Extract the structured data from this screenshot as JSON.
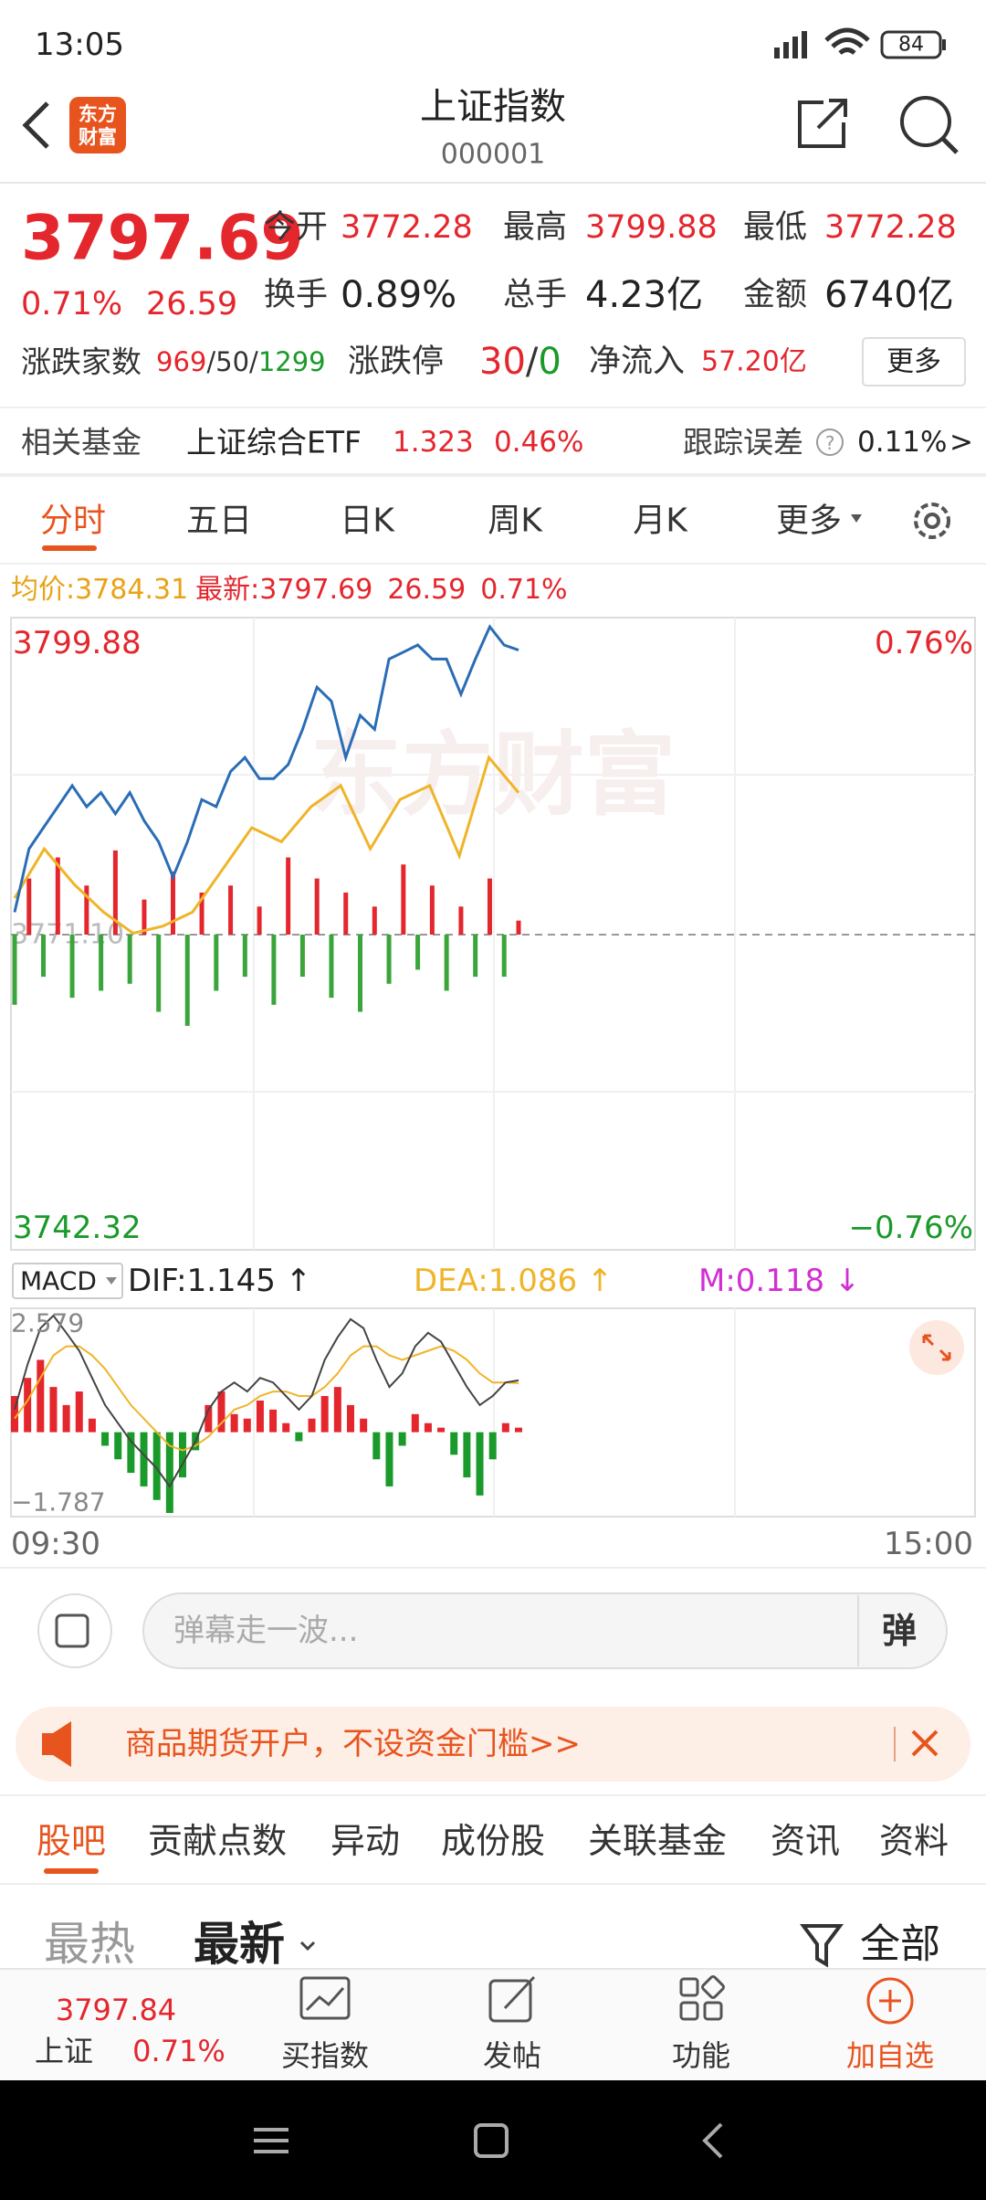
{
  "status_bar": {
    "time": "13:05",
    "battery": "84"
  },
  "header": {
    "logo": [
      "东方",
      "财富"
    ],
    "title": "上证指数",
    "code": "000001"
  },
  "quote": {
    "price": "3797.69",
    "change_pct": "0.71%",
    "change": "26.59",
    "fields": [
      {
        "label": "今开",
        "value": "3772.28"
      },
      {
        "label": "最高",
        "value": "3799.88"
      },
      {
        "label": "最低",
        "value": "3772.28"
      },
      {
        "label": "换手",
        "value": "0.89%"
      },
      {
        "label": "总手",
        "value": "4.23亿"
      },
      {
        "label": "金额",
        "value": "6740亿"
      }
    ]
  },
  "breadth": {
    "label": "涨跌家数",
    "up": "969",
    "flat": "50",
    "down": "1299",
    "separator": "/",
    "limit_label": "涨跌停",
    "limit_up": "30",
    "limit_down": "0",
    "inflow_label": "净流入",
    "inflow": "57.20亿",
    "more": "更多"
  },
  "fund": {
    "label": "相关基金",
    "name": "上证综合ETF",
    "price": "1.323",
    "change_pct": "0.46%",
    "error_label": "跟踪误差",
    "help": "?",
    "error": "0.11%",
    "arrow": ">"
  },
  "tabs": [
    "分时",
    "五日",
    "日K",
    "周K",
    "月K",
    "更多"
  ],
  "info": {
    "avg_label": "均价:",
    "avg": "3784.31",
    "latest_label": "最新:",
    "latest": "3797.69",
    "change": "26.59",
    "change_pct": "0.71%"
  },
  "chart": {
    "watermark": "东方财富",
    "price_ticks": [
      3799.88,
      3742.32
    ],
    "pct_ticks": [
      {
        "value": 0.76,
        "label": "0.76%"
      },
      {
        "value": -0.76,
        "label": "−0.76%"
      }
    ],
    "prev_close": {
      "value": 3771.1,
      "label": "3771.10"
    },
    "price": [
      3773.2,
      3779.12,
      3781.09,
      3783.06,
      3785.03,
      3783.06,
      3784.37,
      3782.4,
      3784.37,
      3781.75,
      3779.78,
      3776.49,
      3779.78,
      3783.72,
      3783.06,
      3786.35,
      3787.66,
      3785.69,
      3785.69,
      3787.0,
      3790.29,
      3794.23,
      3792.92,
      3787.66,
      3791.6,
      3790.29,
      3796.86,
      3797.51,
      3798.17,
      3796.86,
      3796.86,
      3793.57,
      3796.86,
      3799.88,
      3798.17,
      3797.69
    ],
    "average": [
      3774.52,
      3779.12,
      3775.83,
      3773.2,
      3771.23,
      3771.89,
      3773.2,
      3777.15,
      3781.09,
      3779.78,
      3783.06,
      3785.03,
      3779.12,
      3783.72,
      3785.03,
      3778.46,
      3787.66,
      3784.37
    ],
    "flow": [
      -50,
      40,
      -30,
      55,
      -45,
      35,
      -40,
      60,
      -35,
      25,
      -55,
      45,
      -65,
      30,
      -40,
      35,
      -30,
      20,
      -50,
      55,
      -30,
      40,
      -45,
      30,
      -55,
      20,
      -35,
      50,
      -25,
      35,
      -40,
      20,
      -30,
      40,
      -30,
      10
    ],
    "macd": {
      "selector": "MACD",
      "dif_label": "DIF:1.145 ↑",
      "dea_label": "DEA:1.086 ↑",
      "m_label": "M:0.118 ↓",
      "ticks": [
        2.579,
        {
          "value": -1.787,
          "label": "−1.787"
        }
      ],
      "histogram": [
        0.8,
        1.2,
        1.6,
        1.0,
        0.6,
        0.9,
        0.3,
        -0.3,
        -0.6,
        -0.9,
        -1.2,
        -1.5,
        -1.787,
        -1.0,
        -0.4,
        0.6,
        0.9,
        0.4,
        0.3,
        0.7,
        0.5,
        0.2,
        -0.2,
        0.3,
        0.8,
        1.0,
        0.6,
        0.3,
        -0.6,
        -1.2,
        -0.3,
        0.4,
        0.2,
        0.1,
        -0.5,
        -1.0,
        -1.4,
        -0.6,
        0.2,
        0.1
      ],
      "dif": [
        0.5,
        1.5,
        2.3,
        2.579,
        2.2,
        1.8,
        1.2,
        0.6,
        0.2,
        -0.2,
        -0.5,
        -0.8,
        -1.2,
        -0.7,
        -0.2,
        0.5,
        0.9,
        1.1,
        0.9,
        1.2,
        1.1,
        0.8,
        0.5,
        0.8,
        1.6,
        2.1,
        2.5,
        2.3,
        1.6,
        1.0,
        1.3,
        1.9,
        2.2,
        2.0,
        1.5,
        1.0,
        0.6,
        0.8,
        1.1,
        1.145
      ],
      "dea": [
        0.3,
        0.7,
        1.2,
        1.7,
        1.9,
        1.9,
        1.7,
        1.4,
        1.0,
        0.6,
        0.3,
        0.0,
        -0.3,
        -0.4,
        -0.3,
        -0.1,
        0.2,
        0.5,
        0.6,
        0.8,
        0.9,
        0.9,
        0.8,
        0.8,
        1.0,
        1.3,
        1.7,
        1.9,
        1.9,
        1.7,
        1.6,
        1.7,
        1.8,
        1.9,
        1.8,
        1.6,
        1.3,
        1.1,
        1.1,
        1.086
      ]
    },
    "time_labels": [
      "09:30",
      "15:00"
    ]
  },
  "comment": {
    "placeholder": "弹幕走一波...",
    "danmaku": "弹"
  },
  "banner": {
    "text": "商品期货开户，不设资金门槛>>"
  },
  "sections": [
    "股吧",
    "贡献点数",
    "异动",
    "成份股",
    "关联基金",
    "资讯",
    "资料"
  ],
  "filters": {
    "hot": "最热",
    "latest": "最新",
    "all": "全部"
  },
  "bottom_bar": {
    "price": "3797.84",
    "name": "上证",
    "change_pct": "0.71%",
    "actions": [
      "买指数",
      "发帖",
      "功能",
      "加自选"
    ]
  }
}
